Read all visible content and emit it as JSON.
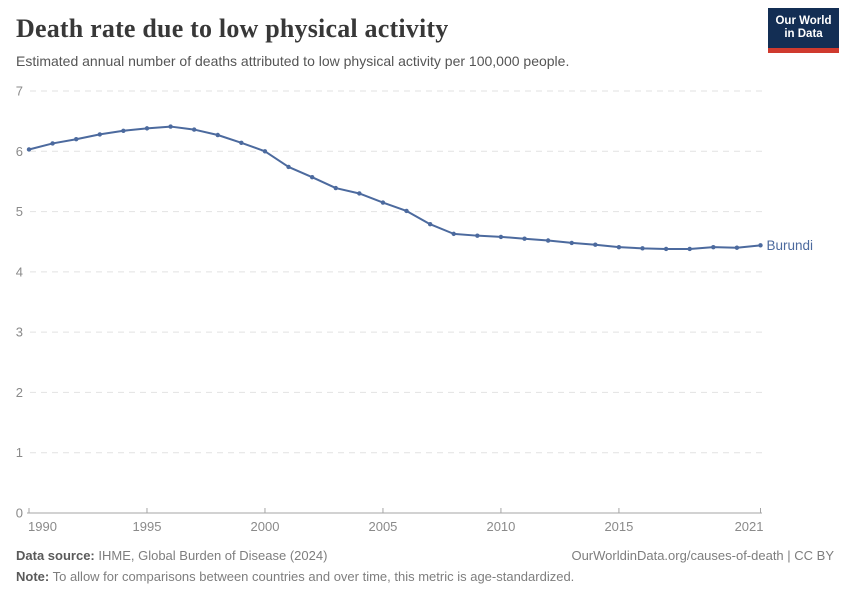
{
  "header": {
    "title": "Death rate due to low physical activity",
    "subtitle": "Estimated annual number of deaths attributed to low physical activity per 100,000 people.",
    "logo": {
      "line1": "Our World",
      "line2": "in Data",
      "bg_color": "#132e54",
      "bar_color": "#cf3a2e"
    }
  },
  "chart_data": {
    "type": "line",
    "title": "Death rate due to low physical activity",
    "xlabel": "",
    "ylabel": "",
    "xlim": [
      1990,
      2021
    ],
    "ylim": [
      0,
      7
    ],
    "x_ticks": [
      1990,
      1995,
      2000,
      2005,
      2010,
      2015,
      2021
    ],
    "y_ticks": [
      0,
      1,
      2,
      3,
      4,
      5,
      6,
      7
    ],
    "grid": "horizontal-dashed",
    "legend_position": "end-of-line-label",
    "series": [
      {
        "name": "Burundi",
        "color": "#4c6a9e",
        "x": [
          1990,
          1991,
          1992,
          1993,
          1994,
          1995,
          1996,
          1997,
          1998,
          1999,
          2000,
          2001,
          2002,
          2003,
          2004,
          2005,
          2006,
          2007,
          2008,
          2009,
          2010,
          2011,
          2012,
          2013,
          2014,
          2015,
          2016,
          2017,
          2018,
          2019,
          2020,
          2021
        ],
        "values": [
          6.03,
          6.13,
          6.2,
          6.28,
          6.34,
          6.38,
          6.41,
          6.36,
          6.27,
          6.14,
          6.0,
          5.74,
          5.57,
          5.39,
          5.3,
          5.15,
          5.01,
          4.79,
          4.63,
          4.6,
          4.58,
          4.55,
          4.52,
          4.48,
          4.45,
          4.41,
          4.39,
          4.38,
          4.38,
          4.41,
          4.4,
          4.44
        ]
      }
    ],
    "axis_label_color": "#8a8a8a",
    "gridline_color": "#e2e2e2",
    "axis_line_color": "#a5a5a5"
  },
  "footer": {
    "datasource_label": "Data source:",
    "datasource_value": " IHME, Global Burden of Disease (2024)",
    "link": "OurWorldinData.org/causes-of-death | CC BY",
    "note_label": "Note:",
    "note_value": " To allow for comparisons between countries and over time, this metric is age-standardized."
  }
}
